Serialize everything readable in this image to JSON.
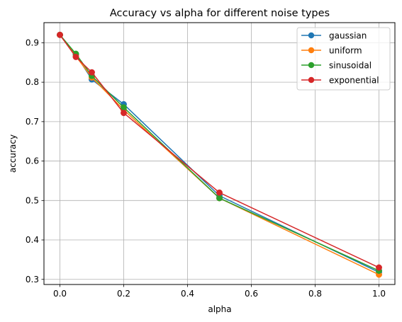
{
  "chart_data": {
    "type": "line",
    "title": "Accuracy vs alpha for different noise types",
    "xlabel": "alpha",
    "ylabel": "accuracy",
    "xlim": [
      -0.05,
      1.05
    ],
    "ylim": [
      0.287,
      0.951
    ],
    "x_ticks": [
      0.0,
      0.2,
      0.4,
      0.6,
      0.8,
      1.0
    ],
    "x_tick_labels": [
      "0.0",
      "0.2",
      "0.4",
      "0.6",
      "0.8",
      "1.0"
    ],
    "y_ticks": [
      0.3,
      0.4,
      0.5,
      0.6,
      0.7,
      0.8,
      0.9
    ],
    "y_tick_labels": [
      "0.3",
      "0.4",
      "0.5",
      "0.6",
      "0.7",
      "0.8",
      "0.9"
    ],
    "grid": true,
    "legend_position": "top-right",
    "x": [
      0.0,
      0.05,
      0.1,
      0.2,
      0.5,
      1.0
    ],
    "series": [
      {
        "name": "gaussian",
        "color": "#1f77b4",
        "values": [
          0.92,
          0.87,
          0.807,
          0.744,
          0.512,
          0.318
        ]
      },
      {
        "name": "uniform",
        "color": "#ff7f0e",
        "values": [
          0.92,
          0.866,
          0.812,
          0.73,
          0.506,
          0.312
        ]
      },
      {
        "name": "sinusoidal",
        "color": "#2ca02c",
        "values": [
          0.92,
          0.872,
          0.816,
          0.736,
          0.506,
          0.322
        ]
      },
      {
        "name": "exponential",
        "color": "#d62728",
        "values": [
          0.92,
          0.864,
          0.825,
          0.722,
          0.52,
          0.33
        ]
      }
    ]
  }
}
